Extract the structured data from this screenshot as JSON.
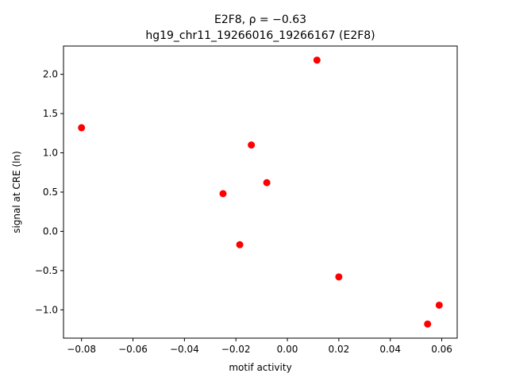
{
  "chart_data": {
    "type": "scatter",
    "title_line1": "E2F8, ρ = −0.63",
    "title_line2": "hg19_chr11_19266016_19266167 (E2F8)",
    "xlabel": "motif activity",
    "ylabel": "signal at CRE (ln)",
    "xlim": [
      -0.087,
      0.066
    ],
    "ylim": [
      -1.36,
      2.36
    ],
    "grid": false,
    "x_ticks": [
      {
        "value": -0.08,
        "label": "−0.08"
      },
      {
        "value": -0.06,
        "label": "−0.06"
      },
      {
        "value": -0.04,
        "label": "−0.04"
      },
      {
        "value": -0.02,
        "label": "−0.02"
      },
      {
        "value": 0.0,
        "label": "0.00"
      },
      {
        "value": 0.02,
        "label": "0.02"
      },
      {
        "value": 0.04,
        "label": "0.04"
      },
      {
        "value": 0.06,
        "label": "0.06"
      }
    ],
    "y_ticks": [
      {
        "value": -1.0,
        "label": "−1.0"
      },
      {
        "value": -0.5,
        "label": "−0.5"
      },
      {
        "value": 0.0,
        "label": "0.0"
      },
      {
        "value": 0.5,
        "label": "0.5"
      },
      {
        "value": 1.0,
        "label": "1.0"
      },
      {
        "value": 1.5,
        "label": "1.5"
      },
      {
        "value": 2.0,
        "label": "2.0"
      }
    ],
    "series": [
      {
        "color": "#ff0000",
        "points": [
          {
            "x": -0.08,
            "y": 1.32
          },
          {
            "x": -0.025,
            "y": 0.48
          },
          {
            "x": -0.0185,
            "y": -0.17
          },
          {
            "x": -0.014,
            "y": 1.1
          },
          {
            "x": -0.008,
            "y": 0.62
          },
          {
            "x": 0.0115,
            "y": 2.18
          },
          {
            "x": 0.02,
            "y": -0.58
          },
          {
            "x": 0.0545,
            "y": -1.18
          },
          {
            "x": 0.059,
            "y": -0.94
          }
        ]
      }
    ]
  }
}
